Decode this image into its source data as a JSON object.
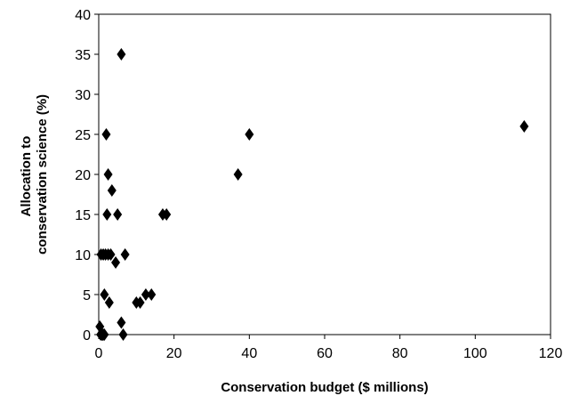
{
  "chart_data": {
    "type": "scatter",
    "title": "",
    "xlabel": "Conservation budget ($ millions)",
    "ylabel_lines": [
      "Allocation to",
      "conservation science (%)"
    ],
    "xlim": [
      0,
      120
    ],
    "ylim": [
      0,
      40
    ],
    "xticks": [
      0,
      20,
      40,
      60,
      80,
      100,
      120
    ],
    "yticks": [
      0,
      5,
      10,
      15,
      20,
      25,
      30,
      35,
      40
    ],
    "grid": false,
    "legend": "none",
    "marker": "diamond",
    "marker_color": "#000000",
    "points": [
      {
        "x": 0.3,
        "y": 1
      },
      {
        "x": 0.5,
        "y": 0
      },
      {
        "x": 0.8,
        "y": 0
      },
      {
        "x": 1.0,
        "y": 0
      },
      {
        "x": 1.2,
        "y": 0
      },
      {
        "x": 1.5,
        "y": 0
      },
      {
        "x": 0.6,
        "y": 10
      },
      {
        "x": 1.2,
        "y": 10
      },
      {
        "x": 1.8,
        "y": 10
      },
      {
        "x": 2.5,
        "y": 10
      },
      {
        "x": 3.2,
        "y": 10
      },
      {
        "x": 1.5,
        "y": 5
      },
      {
        "x": 2.2,
        "y": 15
      },
      {
        "x": 2.0,
        "y": 25
      },
      {
        "x": 2.5,
        "y": 20
      },
      {
        "x": 2.8,
        "y": 4
      },
      {
        "x": 3.5,
        "y": 18
      },
      {
        "x": 4.5,
        "y": 9
      },
      {
        "x": 5.0,
        "y": 15
      },
      {
        "x": 6.0,
        "y": 35
      },
      {
        "x": 6.0,
        "y": 1.5
      },
      {
        "x": 6.5,
        "y": 0
      },
      {
        "x": 7.0,
        "y": 10
      },
      {
        "x": 10.0,
        "y": 4
      },
      {
        "x": 11.0,
        "y": 4
      },
      {
        "x": 12.5,
        "y": 5
      },
      {
        "x": 14.0,
        "y": 5
      },
      {
        "x": 17.0,
        "y": 15
      },
      {
        "x": 18.0,
        "y": 15
      },
      {
        "x": 37.0,
        "y": 20
      },
      {
        "x": 40.0,
        "y": 25
      },
      {
        "x": 113.0,
        "y": 26
      }
    ]
  }
}
